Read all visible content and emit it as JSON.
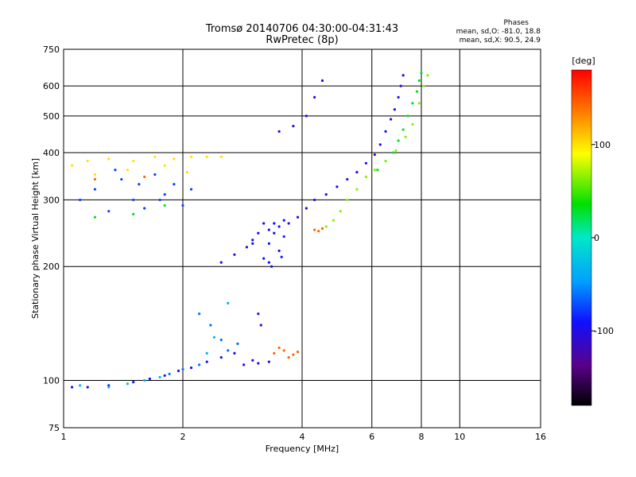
{
  "chart_data": {
    "type": "scatter",
    "title": "Tromsø 20140706 04:30:00-04:31:43",
    "subtitle": "RwPretec (8p)",
    "xlabel": "Frequency [MHz]",
    "ylabel": "Stationary phase Virtual Height [km]",
    "x_scale": "log",
    "y_scale": "log",
    "xlim": [
      1,
      16
    ],
    "ylim": [
      75,
      750
    ],
    "x_ticks": [
      1,
      2,
      4,
      6,
      8,
      10,
      16
    ],
    "y_ticks": [
      75,
      100,
      200,
      300,
      400,
      500,
      600,
      750
    ],
    "x_grid": [
      2,
      4,
      6,
      8,
      10
    ],
    "y_grid": [
      100,
      200,
      300,
      400,
      500,
      600
    ],
    "phase_stats": {
      "title": "Phases",
      "line_o": "mean, sd,O: -81.0, 18.8",
      "line_x": "mean, sd,X:  90.5, 24.9"
    },
    "colorbar": {
      "label": "[deg]",
      "range": [
        -180,
        180
      ],
      "ticks": [
        100,
        0,
        -100
      ]
    },
    "series": [
      {
        "phase_deg": -100,
        "points": [
          [
            1.05,
            96
          ],
          [
            1.15,
            96
          ],
          [
            1.3,
            97
          ],
          [
            1.5,
            99
          ],
          [
            1.65,
            101
          ],
          [
            1.8,
            103
          ],
          [
            1.95,
            106
          ],
          [
            2.1,
            108
          ],
          [
            2.3,
            112
          ],
          [
            2.5,
            115
          ],
          [
            2.7,
            118
          ],
          [
            2.85,
            110
          ],
          [
            3.0,
            113
          ],
          [
            3.1,
            111
          ],
          [
            3.3,
            112
          ],
          [
            3.15,
            140
          ],
          [
            3.1,
            150
          ],
          [
            2.5,
            205
          ],
          [
            2.7,
            215
          ],
          [
            2.9,
            225
          ],
          [
            3.0,
            230
          ],
          [
            3.1,
            245
          ],
          [
            3.3,
            250
          ],
          [
            3.5,
            255
          ],
          [
            3.7,
            260
          ],
          [
            3.9,
            270
          ],
          [
            4.1,
            285
          ],
          [
            4.3,
            300
          ],
          [
            4.6,
            310
          ],
          [
            4.9,
            325
          ],
          [
            5.2,
            340
          ],
          [
            5.5,
            355
          ],
          [
            5.8,
            375
          ],
          [
            6.1,
            395
          ],
          [
            6.3,
            420
          ],
          [
            6.5,
            455
          ],
          [
            6.7,
            490
          ],
          [
            6.85,
            520
          ],
          [
            7.0,
            560
          ],
          [
            7.1,
            600
          ],
          [
            7.2,
            640
          ],
          [
            3.5,
            455
          ],
          [
            3.8,
            470
          ],
          [
            4.1,
            500
          ],
          [
            4.3,
            560
          ],
          [
            4.5,
            620
          ]
        ]
      },
      {
        "phase_deg": -90,
        "points": [
          [
            3.2,
            210
          ],
          [
            3.3,
            230
          ],
          [
            3.4,
            260
          ],
          [
            3.6,
            240
          ],
          [
            3.3,
            205
          ],
          [
            3.5,
            220
          ],
          [
            3.2,
            260
          ],
          [
            3.4,
            245
          ],
          [
            3.6,
            265
          ],
          [
            3.0,
            235
          ],
          [
            3.35,
            200
          ],
          [
            3.55,
            212
          ]
        ]
      },
      {
        "phase_deg": -75,
        "points": [
          [
            1.1,
            300
          ],
          [
            1.2,
            320
          ],
          [
            1.3,
            280
          ],
          [
            1.4,
            340
          ],
          [
            1.5,
            300
          ],
          [
            1.6,
            285
          ],
          [
            1.7,
            350
          ],
          [
            1.8,
            310
          ],
          [
            1.9,
            330
          ],
          [
            2.0,
            290
          ],
          [
            2.1,
            320
          ],
          [
            1.35,
            360
          ],
          [
            1.55,
            330
          ],
          [
            1.75,
            300
          ]
        ]
      },
      {
        "phase_deg": -60,
        "points": [
          [
            2.2,
            150
          ],
          [
            2.35,
            140
          ],
          [
            2.5,
            128
          ],
          [
            2.6,
            120
          ],
          [
            2.75,
            125
          ],
          [
            1.85,
            104
          ],
          [
            2.0,
            107
          ],
          [
            2.2,
            110
          ]
        ]
      },
      {
        "phase_deg": -30,
        "points": [
          [
            1.1,
            97
          ],
          [
            1.3,
            96
          ],
          [
            1.45,
            98
          ],
          [
            1.6,
            100
          ],
          [
            1.75,
            102
          ],
          [
            2.6,
            160
          ],
          [
            2.4,
            130
          ],
          [
            2.3,
            118
          ]
        ]
      },
      {
        "phase_deg": 30,
        "points": [
          [
            7.0,
            430
          ],
          [
            7.2,
            460
          ],
          [
            7.4,
            500
          ],
          [
            7.6,
            540
          ],
          [
            7.8,
            580
          ],
          [
            7.9,
            620
          ],
          [
            8.0,
            650
          ],
          [
            6.8,
            400
          ],
          [
            6.5,
            380
          ],
          [
            6.2,
            360
          ],
          [
            1.2,
            270
          ],
          [
            1.5,
            275
          ],
          [
            1.8,
            290
          ]
        ]
      },
      {
        "phase_deg": 65,
        "points": [
          [
            4.6,
            255
          ],
          [
            4.8,
            265
          ],
          [
            5.0,
            280
          ],
          [
            5.2,
            300
          ],
          [
            5.5,
            320
          ],
          [
            5.8,
            345
          ],
          [
            6.1,
            360
          ],
          [
            6.5,
            380
          ],
          [
            6.9,
            405
          ],
          [
            7.3,
            440
          ],
          [
            7.6,
            475
          ],
          [
            7.9,
            540
          ],
          [
            8.1,
            600
          ],
          [
            8.3,
            640
          ]
        ]
      },
      {
        "phase_deg": 100,
        "points": [
          [
            1.05,
            370
          ],
          [
            1.15,
            380
          ],
          [
            1.3,
            385
          ],
          [
            1.5,
            380
          ],
          [
            1.7,
            390
          ],
          [
            1.9,
            385
          ],
          [
            2.1,
            390
          ],
          [
            2.3,
            390
          ],
          [
            2.5,
            390
          ],
          [
            1.2,
            350
          ],
          [
            1.45,
            360
          ],
          [
            1.8,
            370
          ],
          [
            2.05,
            355
          ]
        ]
      },
      {
        "phase_deg": 145,
        "points": [
          [
            3.4,
            118
          ],
          [
            3.5,
            122
          ],
          [
            3.6,
            120
          ],
          [
            3.7,
            115
          ],
          [
            3.8,
            117
          ],
          [
            3.9,
            119
          ],
          [
            4.4,
            248
          ],
          [
            4.5,
            252
          ],
          [
            4.3,
            250
          ],
          [
            1.2,
            340
          ],
          [
            1.6,
            345
          ]
        ]
      }
    ]
  }
}
